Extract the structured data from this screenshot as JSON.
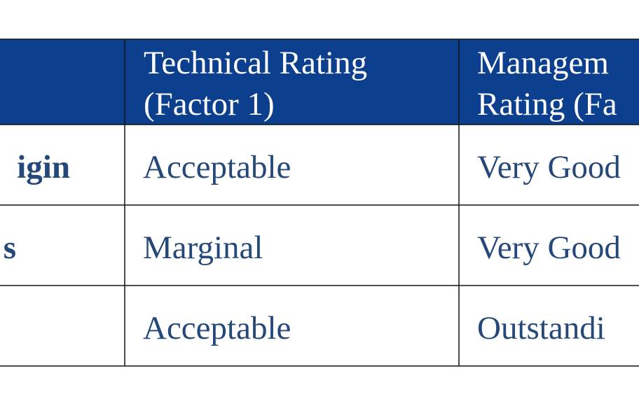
{
  "table": {
    "header": [
      [
        "Technical Rating",
        "(Factor 1)"
      ],
      [
        "Managem",
        "Rating (Fa"
      ]
    ],
    "rows": [
      {
        "label": "igin",
        "cells": [
          "Acceptable",
          "Very Good"
        ]
      },
      {
        "label": "s",
        "cells": [
          "Marginal",
          "Very Good"
        ]
      },
      {
        "cells": [
          "Acceptable",
          "Outstandi"
        ]
      }
    ]
  }
}
